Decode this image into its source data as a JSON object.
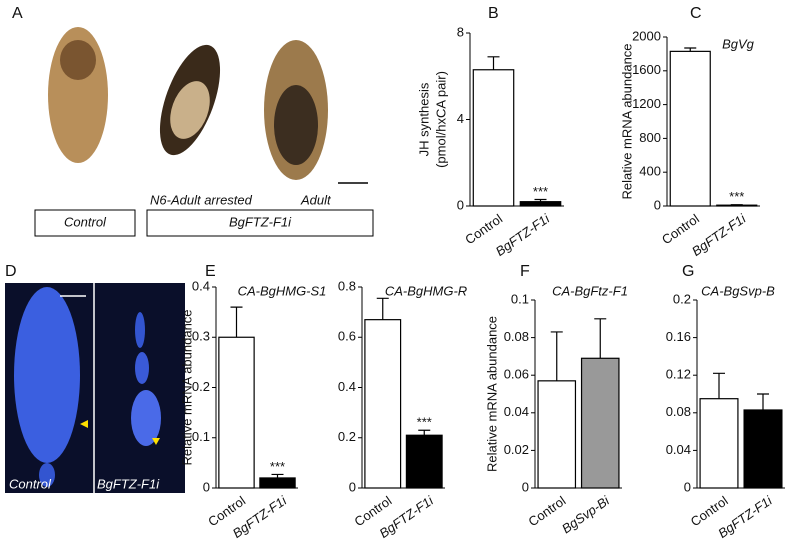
{
  "figure": {
    "panel_a": {
      "letter": "A",
      "labels": [
        "N6-Adult arrested",
        "Adult"
      ],
      "boxes": [
        "Control",
        "BgFTZ-F1i"
      ]
    },
    "panel_d": {
      "letter": "D",
      "labels": [
        "Control",
        "BgFTZ-F1i"
      ]
    }
  },
  "chart_data": [
    {
      "type": "bar",
      "panel": "B",
      "ylabel": [
        "JH synthesis",
        "(pmol/hxCA pair)"
      ],
      "categories": [
        "Control",
        "BgFTZ-F1i"
      ],
      "values": [
        6.3,
        0.2
      ],
      "errors": [
        0.6,
        0.1
      ],
      "colors": [
        "#ffffff",
        "#000000"
      ],
      "value_annotations": [
        null,
        "***"
      ],
      "ylim": [
        0,
        8
      ],
      "yticks": [
        0,
        4,
        8
      ]
    },
    {
      "type": "bar",
      "panel": "C",
      "title": "BgVg",
      "ylabel": [
        "Relative mRNA abundance"
      ],
      "categories": [
        "Control",
        "BgFTZ-F1i"
      ],
      "values": [
        1830,
        10
      ],
      "errors": [
        40,
        5
      ],
      "colors": [
        "#ffffff",
        "#000000"
      ],
      "value_annotations": [
        null,
        "***"
      ],
      "ylim": [
        0,
        2000
      ],
      "yticks": [
        0,
        400,
        800,
        1200,
        1600,
        2000
      ]
    },
    {
      "type": "bar",
      "panel": "E",
      "title": "CA-BgHMG-S1",
      "ylabel": [
        "Relative mRNA abundance"
      ],
      "categories": [
        "Control",
        "BgFTZ-F1i"
      ],
      "values": [
        0.3,
        0.02
      ],
      "errors": [
        0.06,
        0.007
      ],
      "colors": [
        "#ffffff",
        "#000000"
      ],
      "value_annotations": [
        null,
        "***"
      ],
      "ylim": [
        0,
        0.4
      ],
      "yticks": [
        0,
        0.1,
        0.2,
        0.3,
        0.4
      ]
    },
    {
      "type": "bar",
      "title": "CA-BgHMG-R",
      "categories": [
        "Control",
        "BgFTZ-F1i"
      ],
      "values": [
        0.67,
        0.21
      ],
      "errors": [
        0.085,
        0.02
      ],
      "colors": [
        "#ffffff",
        "#000000"
      ],
      "value_annotations": [
        null,
        "***"
      ],
      "ylim": [
        0,
        0.8
      ],
      "yticks": [
        0,
        0.2,
        0.4,
        0.6,
        0.8
      ]
    },
    {
      "type": "bar",
      "panel": "F",
      "title": "CA-BgFtz-F1",
      "ylabel": [
        "Relative mRNA abundance"
      ],
      "categories": [
        "Control",
        "BgSvp-Bi"
      ],
      "values": [
        0.057,
        0.069
      ],
      "errors": [
        0.026,
        0.021
      ],
      "colors": [
        "#ffffff",
        "#999999"
      ],
      "ylim": [
        0,
        0.1
      ],
      "yticks": [
        0,
        0.02,
        0.04,
        0.06,
        0.08,
        0.1
      ]
    },
    {
      "type": "bar",
      "panel": "G",
      "title": "CA-BgSvp-B",
      "categories": [
        "Control",
        "BgFTZ-F1i"
      ],
      "values": [
        0.095,
        0.083
      ],
      "errors": [
        0.027,
        0.017
      ],
      "colors": [
        "#ffffff",
        "#000000"
      ],
      "ylim": [
        0,
        0.2
      ],
      "yticks": [
        0,
        0.04,
        0.08,
        0.12,
        0.16,
        0.2
      ]
    }
  ]
}
